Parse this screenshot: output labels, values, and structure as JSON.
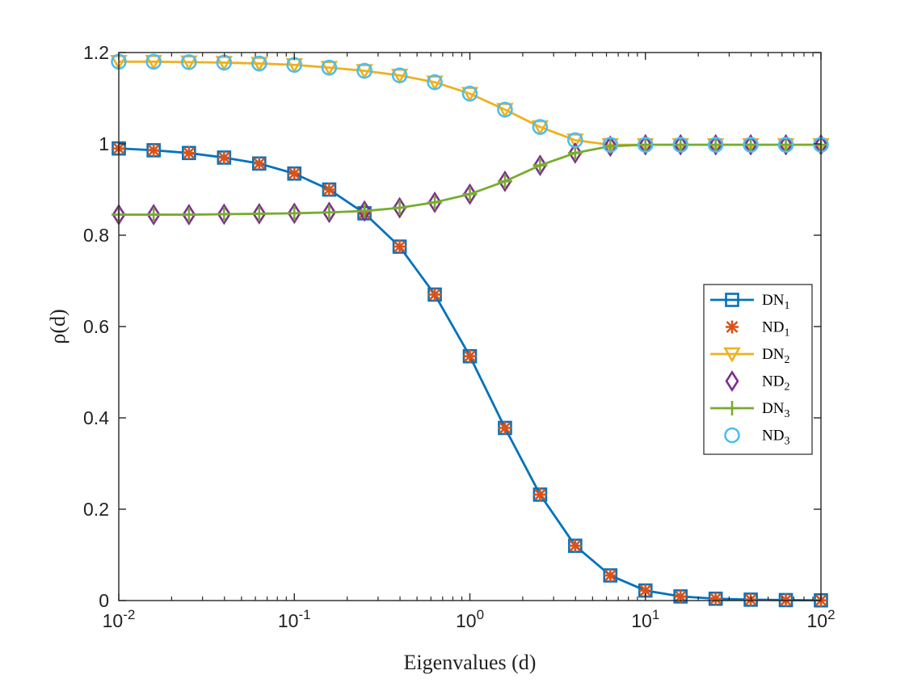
{
  "chart_data": {
    "type": "line",
    "xscale": "log",
    "xlim": [
      0.01,
      100
    ],
    "ylim": [
      0,
      1.2
    ],
    "grid": false,
    "legend_position": "right",
    "xlabel": "Eigenvalues (d)",
    "ylabel": "ρ(d)",
    "xticks": [
      {
        "base": "10",
        "exp": "-2"
      },
      {
        "base": "10",
        "exp": "-1"
      },
      {
        "base": "10",
        "exp": "0"
      },
      {
        "base": "10",
        "exp": "1"
      },
      {
        "base": "10",
        "exp": "2"
      }
    ],
    "yticks": [
      "0",
      "0.2",
      "0.4",
      "0.6",
      "0.8",
      "1",
      "1.2"
    ],
    "x": [
      0.01,
      0.0158,
      0.0251,
      0.0398,
      0.0631,
      0.1,
      0.158,
      0.251,
      0.398,
      0.631,
      1,
      1.585,
      2.512,
      3.981,
      6.31,
      10,
      15.85,
      25.12,
      39.81,
      63.1,
      100
    ],
    "series": [
      {
        "name": "DN",
        "sub": "1",
        "color": "#0072BD",
        "marker": "square",
        "line": true,
        "values": [
          0.99,
          0.986,
          0.98,
          0.97,
          0.957,
          0.935,
          0.9,
          0.848,
          0.775,
          0.67,
          0.535,
          0.378,
          0.232,
          0.12,
          0.055,
          0.022,
          0.009,
          0.004,
          0.002,
          0.001,
          0.0005
        ]
      },
      {
        "name": "ND",
        "sub": "1",
        "color": "#D95319",
        "marker": "asterisk",
        "line": false,
        "values": [
          0.99,
          0.986,
          0.98,
          0.97,
          0.957,
          0.935,
          0.9,
          0.848,
          0.775,
          0.67,
          0.535,
          0.378,
          0.232,
          0.12,
          0.055,
          0.022,
          0.009,
          0.004,
          0.002,
          0.001,
          0.0005
        ]
      },
      {
        "name": "DN",
        "sub": "2",
        "color": "#EDB120",
        "marker": "triangle-down",
        "line": true,
        "values": [
          1.18,
          1.18,
          1.179,
          1.178,
          1.176,
          1.173,
          1.167,
          1.16,
          1.15,
          1.135,
          1.11,
          1.075,
          1.037,
          1.008,
          0.998,
          0.998,
          0.998,
          0.998,
          0.998,
          0.998,
          0.998
        ]
      },
      {
        "name": "ND",
        "sub": "2",
        "color": "#7E2F8E",
        "marker": "diamond",
        "line": false,
        "values": [
          0.845,
          0.845,
          0.845,
          0.846,
          0.847,
          0.848,
          0.85,
          0.853,
          0.86,
          0.872,
          0.89,
          0.918,
          0.953,
          0.98,
          0.995,
          0.998,
          0.998,
          0.998,
          0.998,
          0.998,
          0.998
        ]
      },
      {
        "name": "DN",
        "sub": "3",
        "color": "#77AC30",
        "marker": "plus",
        "line": true,
        "values": [
          0.845,
          0.845,
          0.845,
          0.846,
          0.847,
          0.848,
          0.85,
          0.853,
          0.86,
          0.872,
          0.89,
          0.918,
          0.953,
          0.98,
          0.995,
          0.998,
          0.998,
          0.998,
          0.998,
          0.998,
          0.998
        ]
      },
      {
        "name": "ND",
        "sub": "3",
        "color": "#4DBEEE",
        "marker": "circle",
        "line": false,
        "values": [
          1.18,
          1.18,
          1.179,
          1.178,
          1.176,
          1.173,
          1.167,
          1.16,
          1.15,
          1.135,
          1.11,
          1.075,
          1.037,
          1.008,
          0.998,
          0.998,
          0.998,
          0.998,
          0.998,
          0.998,
          0.998
        ]
      }
    ]
  }
}
